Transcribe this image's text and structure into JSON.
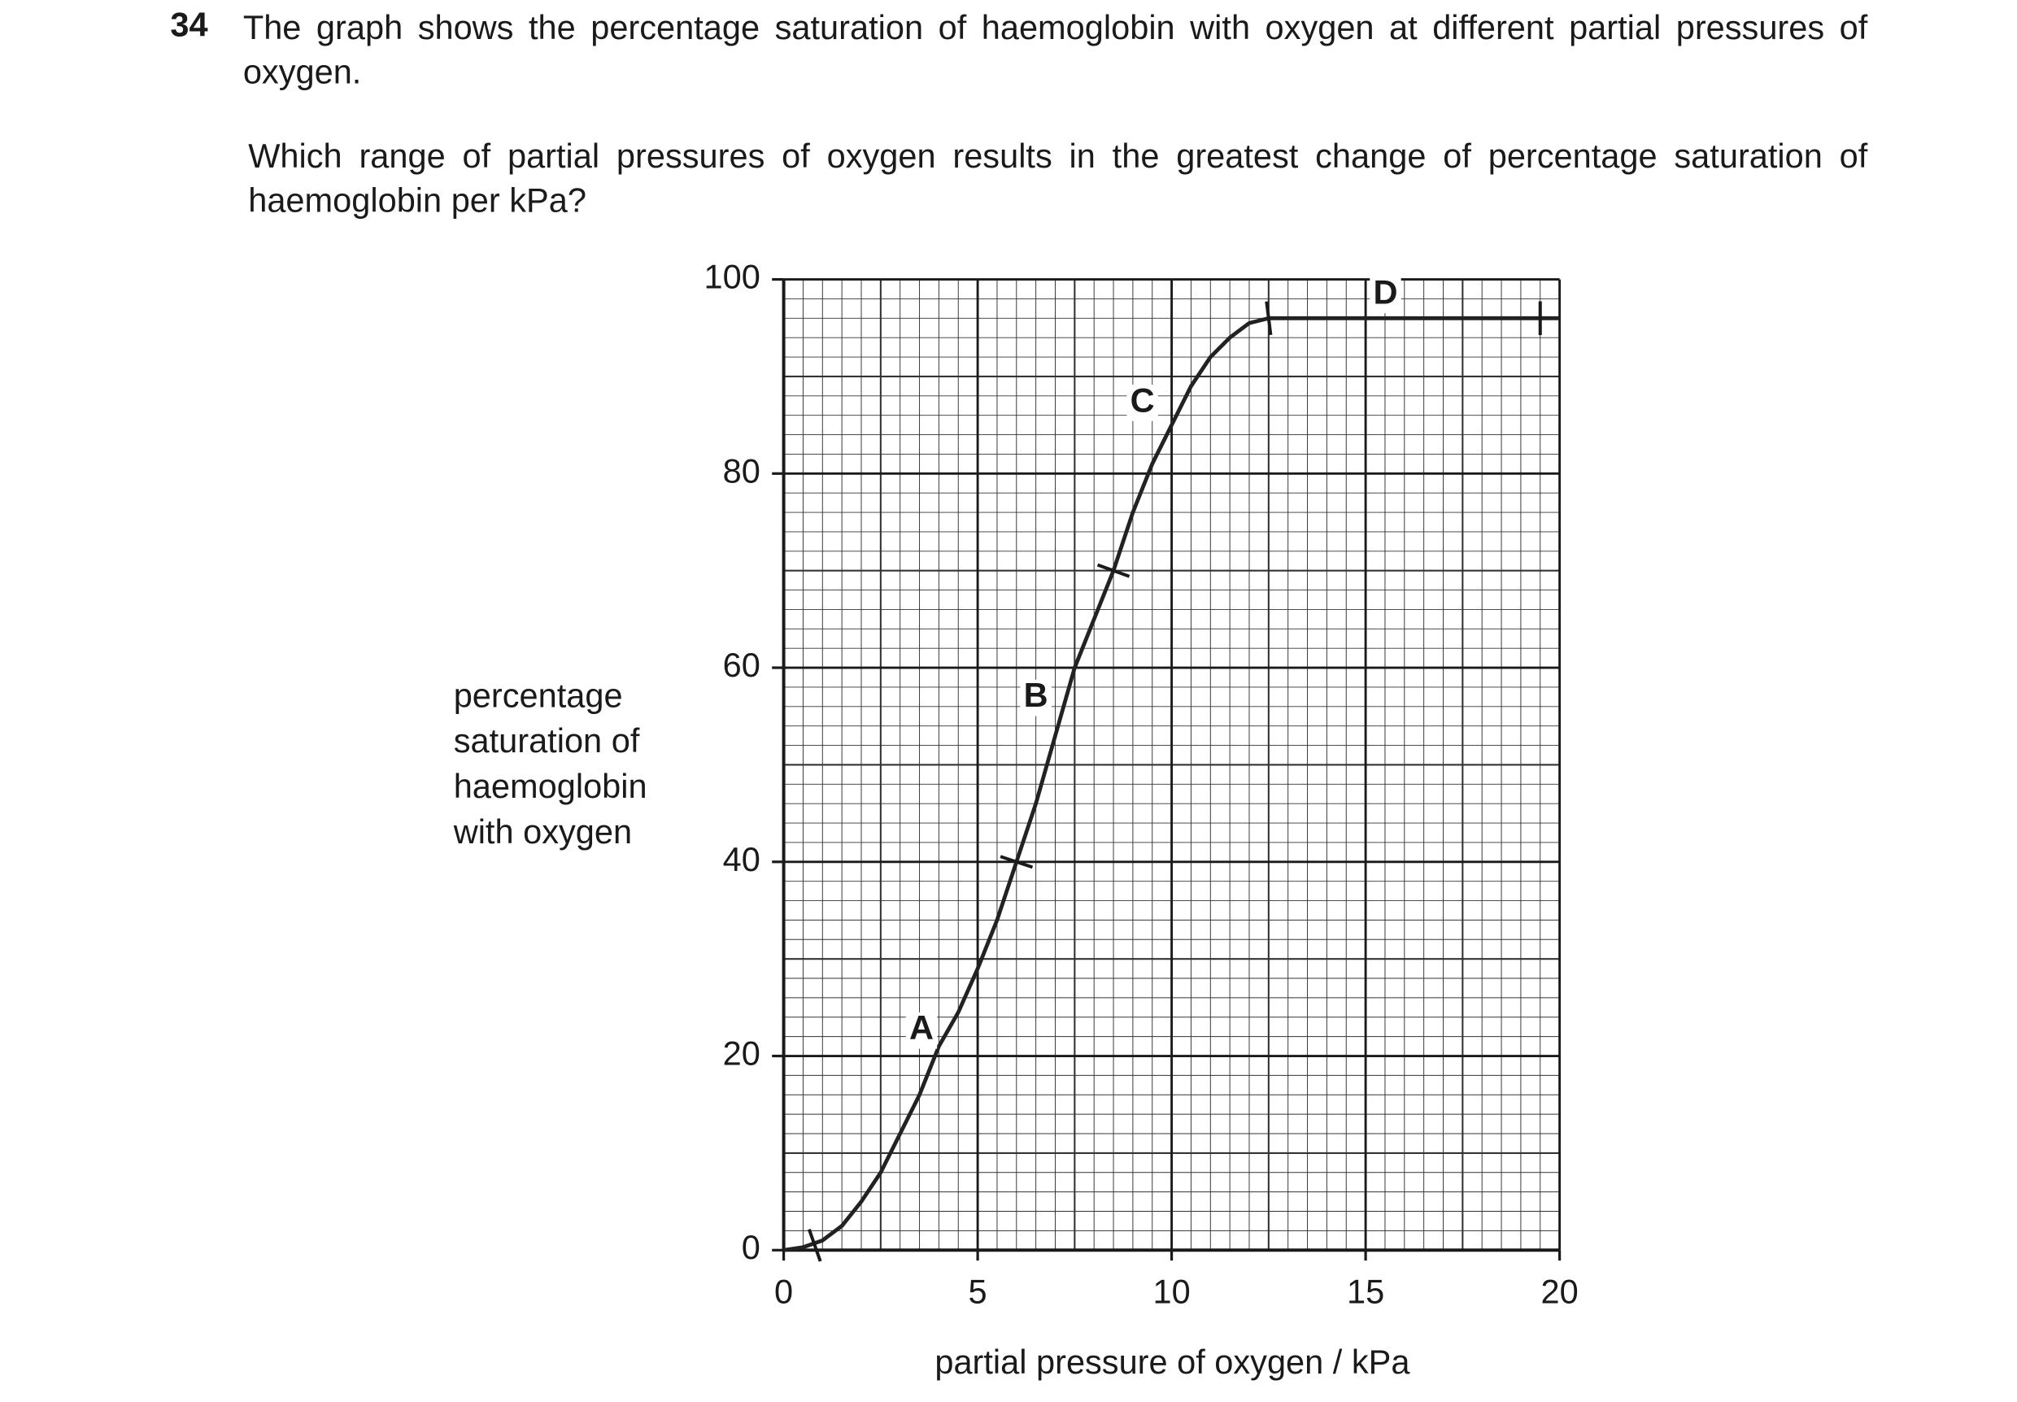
{
  "question": {
    "number": "34",
    "stem": "The graph shows the percentage saturation of haemoglobin with oxygen at different partial pressures of oxygen.",
    "prompt": "Which range of partial pressures of oxygen results in the greatest change of percentage saturation of haemoglobin per kPa?"
  },
  "chart_data": {
    "type": "line",
    "xlabel": "partial pressure of oxygen / kPa",
    "ylabel": "percentage saturation of haemoglobin with oxygen",
    "x": [
      0,
      0.5,
      1,
      1.5,
      2,
      2.5,
      3,
      3.5,
      4,
      4.5,
      5,
      5.5,
      6,
      6.5,
      7,
      7.5,
      8,
      8.5,
      9,
      9.5,
      10,
      10.5,
      11,
      11.5,
      12,
      12.5,
      20
    ],
    "series": [
      {
        "color": "#222222",
        "values": [
          0,
          0.3,
          1,
          2.5,
          5,
          8,
          12,
          16,
          21,
          24.5,
          29,
          34,
          40,
          46,
          53,
          60,
          65,
          70,
          76,
          81,
          85,
          89,
          92,
          94,
          95.5,
          96,
          96
        ]
      }
    ],
    "range_labels": [
      "A",
      "B",
      "C",
      "D"
    ],
    "range_boundaries": [
      {
        "x": 0.8,
        "y": 0.5
      },
      {
        "x": 6,
        "y": 40
      },
      {
        "x": 8.5,
        "y": 70
      },
      {
        "x": 12.5,
        "y": 96
      },
      {
        "x": 19.5,
        "y": 96
      }
    ],
    "xlim": [
      0,
      20
    ],
    "xticks": [
      0,
      5,
      10,
      15,
      20
    ],
    "ylim": [
      0,
      100
    ],
    "yticks": [
      0,
      20,
      40,
      60,
      80,
      100
    ],
    "grid": true
  }
}
